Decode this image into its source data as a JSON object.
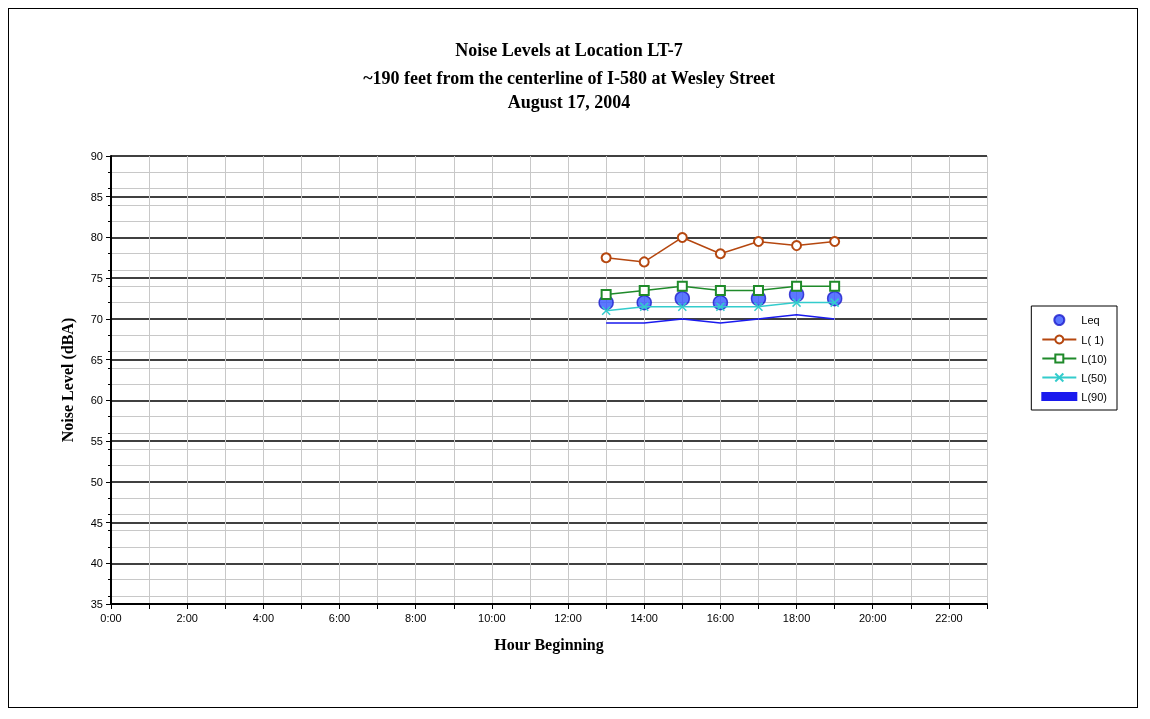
{
  "chart_data": {
    "type": "line",
    "title": "Noise Levels at Location LT-7",
    "subtitle": "~190 feet from the centerline of I-580 at Wesley Street\nAugust 17, 2004",
    "xlabel": "Hour Beginning",
    "ylabel": "Noise Level (dBA)",
    "x": [
      13,
      14,
      15,
      16,
      17,
      18,
      19
    ],
    "series": [
      {
        "name": "Leq",
        "type": "scatter",
        "marker": "circle",
        "color": "#3355ff",
        "values": [
          72,
          72,
          72.5,
          72,
          72.5,
          73,
          72.5
        ]
      },
      {
        "name": "L( 1)",
        "marker": "circle",
        "color": "#b5470f",
        "values": [
          77.5,
          77,
          80,
          78,
          79.5,
          79,
          79.5
        ]
      },
      {
        "name": "L(10)",
        "marker": "square",
        "color": "#1f8a2a",
        "values": [
          73,
          73.5,
          74,
          73.5,
          73.5,
          74,
          74
        ]
      },
      {
        "name": "L(50)",
        "marker": "cross",
        "color": "#33cccc",
        "values": [
          71,
          71.5,
          71.5,
          71.5,
          71.5,
          72,
          72
        ]
      },
      {
        "name": "L(90)",
        "marker": "none",
        "color": "#1a1aee",
        "values": [
          69.5,
          69.5,
          70,
          69.5,
          70,
          70.5,
          70
        ]
      }
    ],
    "xlim": [
      0,
      23
    ],
    "xticks": [
      {
        "value": 0,
        "label": "0:00"
      },
      {
        "value": 1,
        "label": null
      },
      {
        "value": 2,
        "label": "2:00"
      },
      {
        "value": 3,
        "label": null
      },
      {
        "value": 4,
        "label": "4:00"
      },
      {
        "value": 5,
        "label": null
      },
      {
        "value": 6,
        "label": "6:00"
      },
      {
        "value": 7,
        "label": null
      },
      {
        "value": 8,
        "label": "8:00"
      },
      {
        "value": 9,
        "label": null
      },
      {
        "value": 10,
        "label": "10:00"
      },
      {
        "value": 11,
        "label": null
      },
      {
        "value": 12,
        "label": "12:00"
      },
      {
        "value": 13,
        "label": null
      },
      {
        "value": 14,
        "label": "14:00"
      },
      {
        "value": 15,
        "label": null
      },
      {
        "value": 16,
        "label": "16:00"
      },
      {
        "value": 17,
        "label": null
      },
      {
        "value": 18,
        "label": "18:00"
      },
      {
        "value": 19,
        "label": null
      },
      {
        "value": 20,
        "label": "20:00"
      },
      {
        "value": 21,
        "label": null
      },
      {
        "value": 22,
        "label": "22:00"
      },
      {
        "value": 23,
        "label": null
      }
    ],
    "ylim": [
      35,
      90
    ],
    "yticks": [
      35,
      40,
      45,
      50,
      55,
      60,
      65,
      70,
      75,
      80,
      85,
      90
    ],
    "grid": true,
    "legend": "right"
  }
}
